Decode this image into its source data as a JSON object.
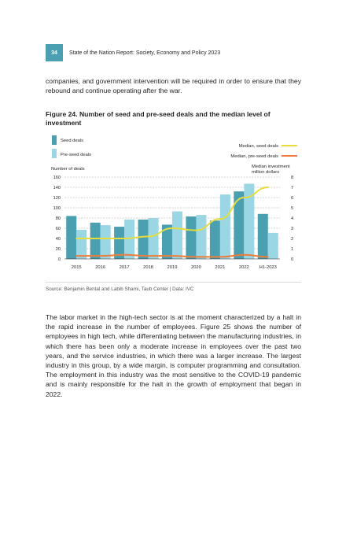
{
  "header": {
    "page_number": "34",
    "running_head": "State of the Nation Report: Society, Economy and Policy 2023"
  },
  "intro_text": "companies, and government intervention will be required in order to ensure that they rebound and continue operating after the war.",
  "figure": {
    "title": "Figure 24. Number of seed and pre-seed deals and the median level of investment",
    "source": "Source: Benjamin Bental and Labib Shami, Taub Center | Data: IVC"
  },
  "chart_data": {
    "type": "bar",
    "categories": [
      "2015",
      "2016",
      "2017",
      "2018",
      "2019",
      "2020",
      "2021",
      "2022",
      "H1-2023"
    ],
    "series": [
      {
        "name": "Seed deals",
        "kind": "bar",
        "axis": "left",
        "color": "#4a9fb0",
        "values": [
          84,
          71,
          63,
          77,
          67,
          83,
          75,
          132,
          88
        ]
      },
      {
        "name": "Pre-seed deals",
        "kind": "bar",
        "axis": "left",
        "color": "#9ad6e3",
        "values": [
          57,
          66,
          77,
          80,
          93,
          86,
          126,
          147,
          51
        ]
      },
      {
        "name": "Median, seed deals",
        "kind": "line",
        "axis": "right",
        "color": "#e6dc3c",
        "values": [
          2.0,
          2.0,
          2.0,
          2.2,
          3.0,
          2.8,
          3.9,
          6.0,
          7.0
        ]
      },
      {
        "name": "Median, pre-seed deals",
        "kind": "line",
        "axis": "right",
        "color": "#ee7d3a",
        "values": [
          0.3,
          0.3,
          0.4,
          0.3,
          0.3,
          0.2,
          0.2,
          0.4,
          0.2
        ]
      }
    ],
    "ylabel": "Number of deals",
    "ylabel_right": "Median investment million dollars",
    "ylim": [
      0,
      160
    ],
    "ylim_right": [
      0,
      8
    ],
    "yticks": [
      "0",
      "20",
      "40",
      "60",
      "80",
      "100",
      "120",
      "140",
      "160"
    ],
    "yticks_right": [
      "0",
      "1",
      "2",
      "3",
      "4",
      "5",
      "6",
      "7",
      "8"
    ],
    "grid": true,
    "legend": "top"
  },
  "body_text": "The labor market in the high-tech sector is at the moment characterized by a halt in the rapid increase in the number of employees. Figure 25 shows the number of employees in high tech, while differentiating between the manufacturing industries, in which there has been only a moderate increase in employees over the past two years, and the service industries, in which there was a larger increase. The largest industry in this group, by a wide margin, is computer programming and consultation. The employment in this industry was the most sensitive to the COVID-19 pandemic and is mainly responsible for the halt in the growth of employment that began in 2022."
}
